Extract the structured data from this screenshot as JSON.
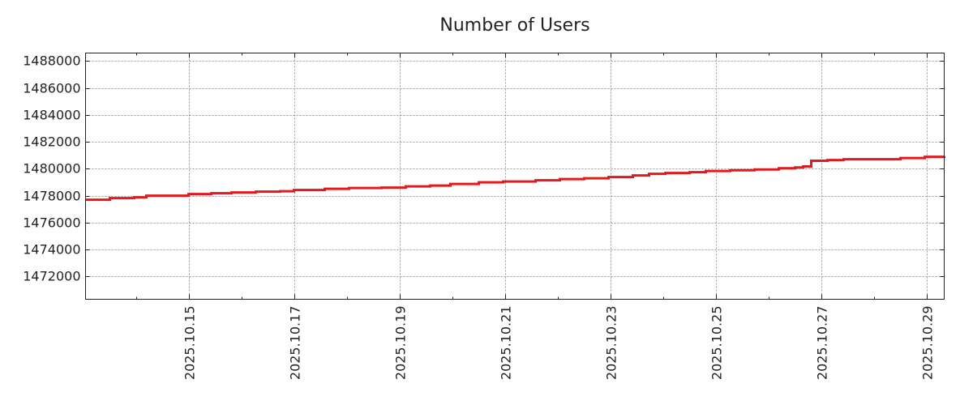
{
  "chart_data": {
    "type": "line",
    "title": "Number of Users",
    "xlabel": "",
    "ylabel": "",
    "x_unit": "days since 2025.10.13 00:00",
    "xlim": [
      0.046,
      16.338
    ],
    "ylim": [
      1470300,
      1488600
    ],
    "grid": true,
    "line_color": "#e31a1c",
    "x_ticks": [
      {
        "value": 2,
        "label": "2025.10.15"
      },
      {
        "value": 4,
        "label": "2025.10.17"
      },
      {
        "value": 6,
        "label": "2025.10.19"
      },
      {
        "value": 8,
        "label": "2025.10.21"
      },
      {
        "value": 10,
        "label": "2025.10.23"
      },
      {
        "value": 12,
        "label": "2025.10.25"
      },
      {
        "value": 14,
        "label": "2025.10.27"
      },
      {
        "value": 16,
        "label": "2025.10.29"
      }
    ],
    "y_ticks": [
      1472000,
      1474000,
      1476000,
      1478000,
      1480000,
      1482000,
      1484000,
      1486000,
      1488000
    ],
    "series": [
      {
        "name": "Number of Users",
        "x": [
          0.046,
          0.277,
          0.508,
          0.969,
          1.2,
          1.662,
          2,
          2.431,
          2.815,
          3.277,
          3.738,
          4,
          4.585,
          5.046,
          5.662,
          6.123,
          6.585,
          6.969,
          7.508,
          7.969,
          8.585,
          9.046,
          9.508,
          9.969,
          10.431,
          10.738,
          11.046,
          11.508,
          11.815,
          12.277,
          12.738,
          13.2,
          13.508,
          13.662,
          13.815,
          14.123,
          14.431,
          15.2,
          15.508,
          15.969,
          16.338
        ],
        "y": [
          1477700,
          1477700,
          1477820,
          1477880,
          1478000,
          1478000,
          1478120,
          1478180,
          1478240,
          1478300,
          1478330,
          1478420,
          1478510,
          1478570,
          1478600,
          1478690,
          1478750,
          1478870,
          1478990,
          1479050,
          1479140,
          1479230,
          1479290,
          1479380,
          1479500,
          1479620,
          1479680,
          1479740,
          1479830,
          1479890,
          1479950,
          1480040,
          1480100,
          1480170,
          1480590,
          1480650,
          1480710,
          1480710,
          1480800,
          1480890,
          1480950
        ]
      }
    ]
  }
}
